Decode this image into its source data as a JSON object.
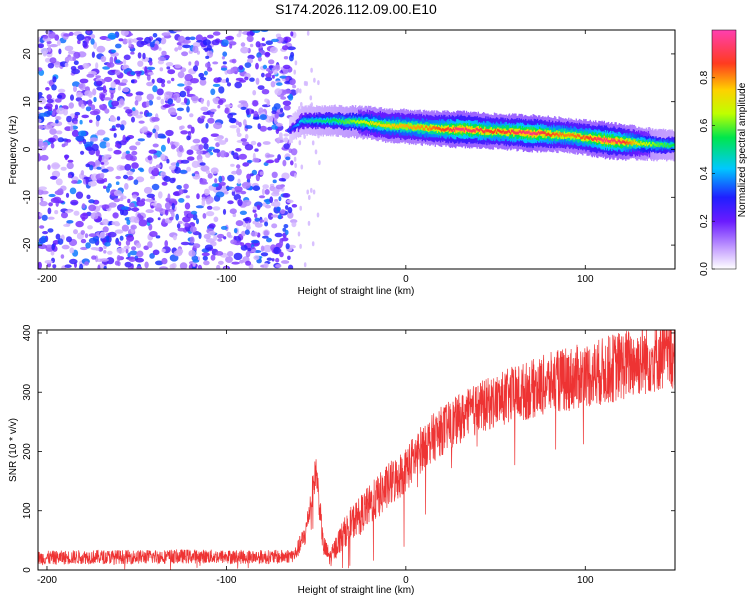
{
  "title": "S174.2026.112.09.00.E10",
  "chart_data": [
    {
      "type": "heatmap",
      "xlabel": "Height of straight line (km)",
      "ylabel": "Frequency (Hz)",
      "xlim": [
        -205,
        150
      ],
      "ylim": [
        -25,
        25
      ],
      "xticks": [
        -200,
        -100,
        0,
        100
      ],
      "yticks": [
        -20,
        -10,
        0,
        10,
        20
      ],
      "noise_region_x": [
        -205,
        -62
      ],
      "ridge": {
        "x": [
          -65,
          -58,
          -50,
          -40,
          -30,
          -20,
          -10,
          0,
          10,
          20,
          30,
          40,
          50,
          60,
          70,
          80,
          90,
          100,
          110,
          120,
          130,
          140,
          150
        ],
        "frequency": [
          4,
          6,
          6,
          6,
          5.8,
          5.5,
          5,
          4.8,
          4.5,
          4.3,
          4.2,
          4.0,
          3.8,
          3.6,
          3.4,
          3.2,
          3.0,
          2.5,
          2.0,
          1.6,
          1.3,
          1.0,
          0.8
        ],
        "amplitude": [
          0.3,
          0.45,
          0.5,
          0.55,
          0.62,
          0.7,
          0.75,
          0.78,
          0.8,
          0.85,
          0.95,
          0.9,
          0.85,
          0.9,
          0.95,
          0.85,
          0.8,
          0.85,
          0.95,
          0.9,
          0.7,
          0.6,
          0.55
        ]
      },
      "colorbar": {
        "label": "Normalized spectral amplitude",
        "range": [
          0,
          1
        ],
        "ticks": [
          0.0,
          0.2,
          0.4,
          0.6,
          0.8
        ]
      }
    },
    {
      "type": "line",
      "xlabel": "Height of straight line (km)",
      "ylabel": "SNR (10 * v/v)",
      "xlim": [
        -205,
        150
      ],
      "ylim": [
        0,
        405
      ],
      "xticks": [
        -200,
        -100,
        0,
        100
      ],
      "yticks": [
        0,
        100,
        200,
        300,
        400
      ],
      "color": "#ee3333",
      "series": [
        {
          "name": "SNR",
          "x": [
            -205,
            -180,
            -150,
            -120,
            -90,
            -70,
            -62,
            -56,
            -50,
            -46,
            -42,
            -38,
            -35,
            -30,
            -20,
            -10,
            0,
            10,
            20,
            30,
            40,
            50,
            60,
            70,
            80,
            90,
            100,
            110,
            120,
            130,
            140,
            150
          ],
          "y": [
            20,
            22,
            22,
            23,
            22,
            22,
            25,
            60,
            170,
            40,
            20,
            45,
            60,
            80,
            110,
            140,
            170,
            210,
            235,
            255,
            272,
            285,
            295,
            305,
            315,
            322,
            328,
            335,
            345,
            352,
            360,
            365
          ],
          "noise": [
            12,
            12,
            12,
            12,
            12,
            12,
            12,
            20,
            30,
            20,
            15,
            22,
            25,
            30,
            35,
            40,
            40,
            40,
            42,
            42,
            45,
            45,
            50,
            50,
            52,
            55,
            55,
            58,
            60,
            60,
            60,
            60
          ]
        }
      ]
    }
  ]
}
